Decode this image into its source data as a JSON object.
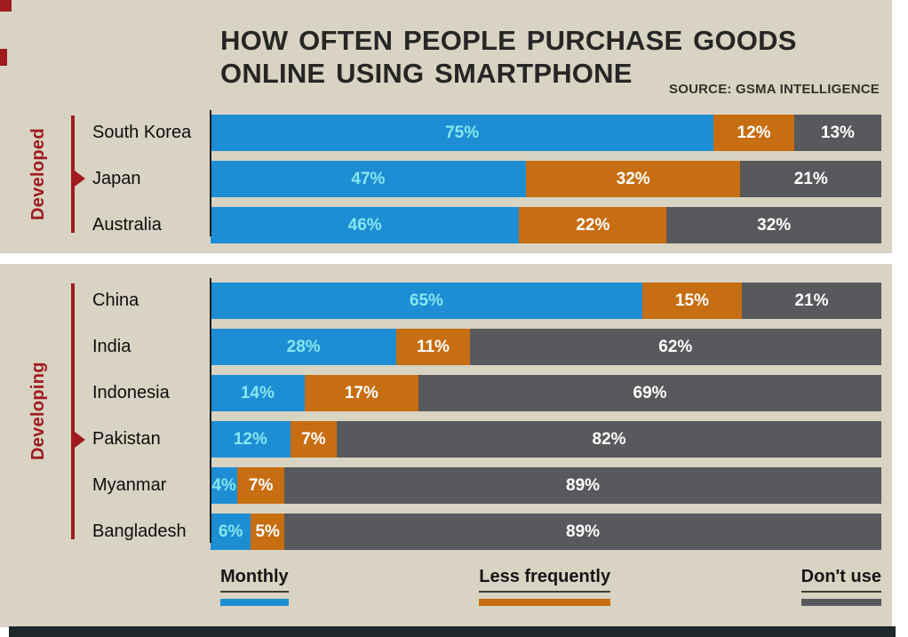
{
  "header": {
    "title_line1": "HOW OFTEN PEOPLE PURCHASE GOODS",
    "title_line2": "ONLINE USING SMARTPHONE",
    "source": "SOURCE: GSMA INTELLIGENCE"
  },
  "chart_data": {
    "type": "bar",
    "variant": "horizontal-stacked",
    "unit": "%",
    "title": "How often people purchase goods online using smartphone",
    "series": [
      "Monthly",
      "Less frequently",
      "Don't use"
    ],
    "series_colors": [
      "#1d8ed4",
      "#c76e12",
      "#58595c"
    ],
    "xlim": [
      0,
      100
    ],
    "groups": [
      {
        "label": "Developed",
        "rows": [
          {
            "country": "South Korea",
            "values": [
              75,
              12,
              13
            ],
            "labels": [
              "75%",
              "12%",
              "13%"
            ]
          },
          {
            "country": "Japan",
            "values": [
              47,
              32,
              21
            ],
            "labels": [
              "47%",
              "32%",
              "21%"
            ]
          },
          {
            "country": "Australia",
            "values": [
              46,
              22,
              32
            ],
            "labels": [
              "46%",
              "22%",
              "32%"
            ]
          }
        ]
      },
      {
        "label": "Developing",
        "rows": [
          {
            "country": "China",
            "values": [
              65,
              15,
              21
            ],
            "labels": [
              "65%",
              "15%",
              "21%"
            ]
          },
          {
            "country": "India",
            "values": [
              28,
              11,
              62
            ],
            "labels": [
              "28%",
              "11%",
              "62%"
            ]
          },
          {
            "country": "Indonesia",
            "values": [
              14,
              17,
              69
            ],
            "labels": [
              "14%",
              "17%",
              "69%"
            ]
          },
          {
            "country": "Pakistan",
            "values": [
              12,
              7,
              82
            ],
            "labels": [
              "12%",
              "7%",
              "82%"
            ]
          },
          {
            "country": "Myanmar",
            "values": [
              4,
              7,
              89
            ],
            "labels": [
              "4%",
              "7%",
              "89%"
            ]
          },
          {
            "country": "Bangladesh",
            "values": [
              6,
              5,
              89
            ],
            "labels": [
              "6%",
              "5%",
              "89%"
            ]
          }
        ]
      }
    ]
  },
  "legend": {
    "items": [
      {
        "label": "Monthly",
        "color": "#1d8ed4"
      },
      {
        "label": "Less frequently",
        "color": "#c76e12"
      },
      {
        "label": "Don't use",
        "color": "#58595c"
      }
    ]
  },
  "colors": {
    "background": "#d8d3c2",
    "accent_red": "#9f1b20",
    "blue": "#1d8ed4",
    "orange": "#c76e12",
    "gray": "#58595c",
    "cyan_value_label": "#86e7ee",
    "bottom_strip": "#1e282a"
  }
}
